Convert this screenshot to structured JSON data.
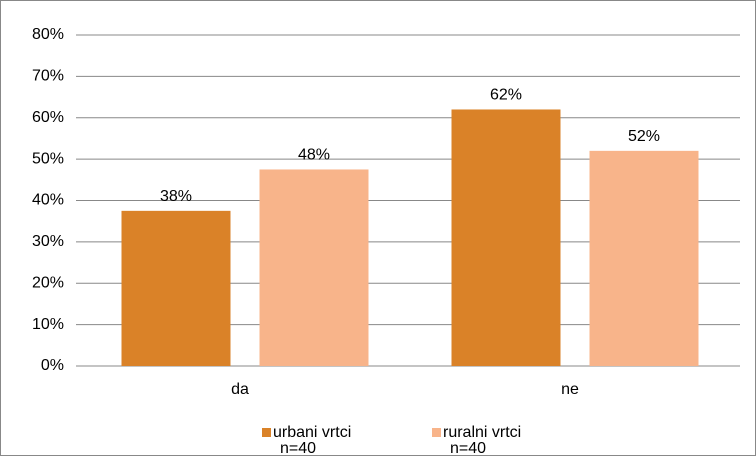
{
  "chart_data": {
    "type": "bar",
    "categories": [
      "da",
      "ne"
    ],
    "series": [
      {
        "name": "urbani vrtci",
        "note": "n=40",
        "color": "#da8228",
        "values": [
          37.5,
          62
        ],
        "value_labels": [
          "38%",
          "62%"
        ]
      },
      {
        "name": "ruralni vrtci",
        "note": "n=40",
        "color": "#f8b48a",
        "values": [
          47.5,
          52
        ],
        "value_labels": [
          "48%",
          "52%"
        ]
      }
    ],
    "ylim": [
      0,
      80
    ],
    "yticks": [
      {
        "value": 0,
        "label": "0%"
      },
      {
        "value": 10,
        "label": "10%"
      },
      {
        "value": 20,
        "label": "20%"
      },
      {
        "value": 30,
        "label": "30%"
      },
      {
        "value": 40,
        "label": "40%"
      },
      {
        "value": 50,
        "label": "50%"
      },
      {
        "value": 60,
        "label": "60%"
      },
      {
        "value": 70,
        "label": "70%"
      },
      {
        "value": 80,
        "label": "80%"
      }
    ],
    "grid": true,
    "legend": "bottom"
  }
}
